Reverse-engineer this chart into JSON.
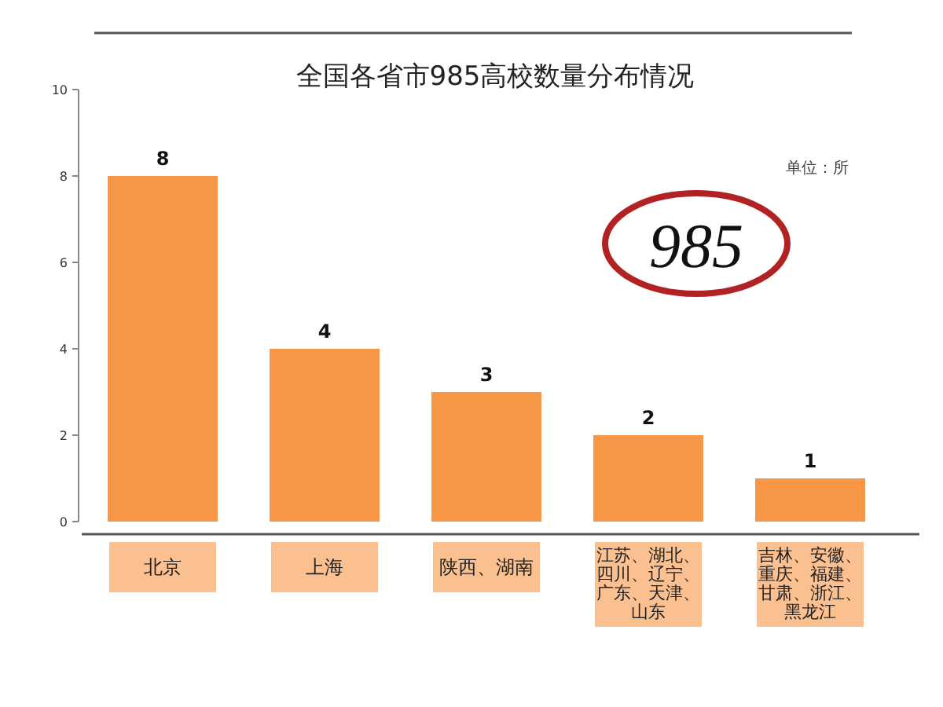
{
  "chart_data": {
    "type": "bar",
    "title": "全国各省市985高校数量分布情况",
    "categories": [
      "北京",
      "上海",
      "陕西、湖南",
      "江苏、湖北、四川、辽宁、广东、天津、山东",
      "吉林、安徽、重庆、福建、甘肃、浙江、黑龙江"
    ],
    "values": [
      8,
      4,
      3,
      2,
      1
    ],
    "color": "#f79646",
    "data_labels": true,
    "ylim": [
      0,
      10
    ],
    "yticks": [
      0,
      2,
      4,
      6,
      8,
      10
    ],
    "grid": false,
    "annotations": [
      "单位：所",
      "985"
    ]
  }
}
